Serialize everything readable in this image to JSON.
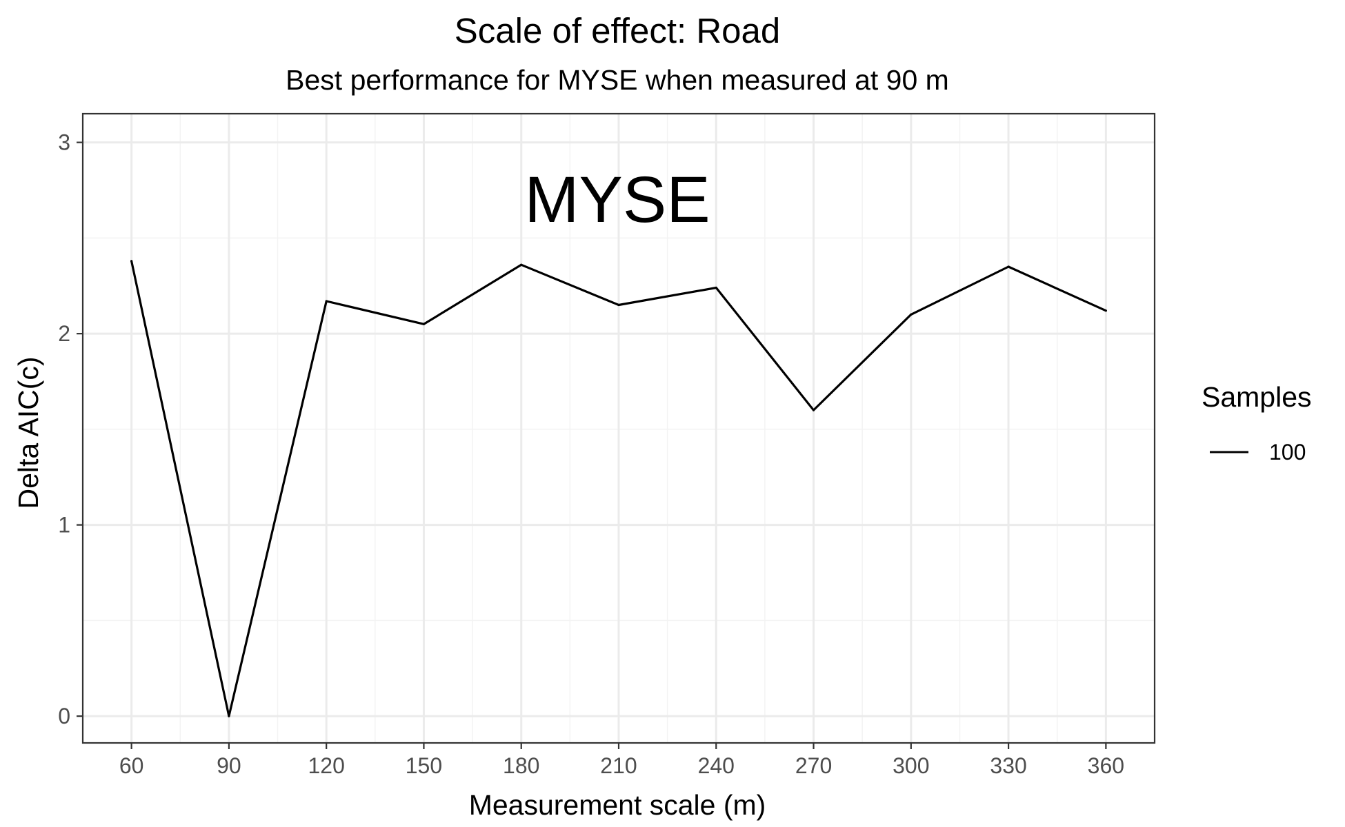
{
  "chart_data": {
    "type": "line",
    "title": "Scale of effect: Road",
    "subtitle": "Best performance for MYSE when measured at 90 m",
    "xlabel": "Measurement scale (m)",
    "ylabel": "Delta AIC(c)",
    "annotation": "MYSE",
    "x": [
      60,
      90,
      120,
      150,
      180,
      210,
      240,
      270,
      300,
      330,
      360
    ],
    "series": [
      {
        "name": "100",
        "color": "#000000",
        "values": [
          2.38,
          0.0,
          2.17,
          2.05,
          2.36,
          2.15,
          2.24,
          1.6,
          2.1,
          2.35,
          2.12
        ]
      }
    ],
    "xticks": [
      "60",
      "90",
      "120",
      "150",
      "180",
      "210",
      "240",
      "270",
      "300",
      "330",
      "360"
    ],
    "yticks": [
      "0",
      "1",
      "2",
      "3"
    ],
    "xlim": [
      45,
      375
    ],
    "ylim": [
      -0.14,
      3.15
    ],
    "grid": true,
    "legend": {
      "title": "Samples",
      "placement": "right"
    }
  }
}
